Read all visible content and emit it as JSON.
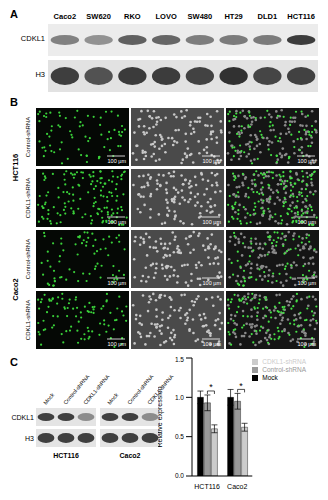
{
  "panel_labels": [
    "A",
    "B",
    "C"
  ],
  "panel_a": {
    "lanes": [
      "Caco2",
      "SW620",
      "RKO",
      "LOVO",
      "SW480",
      "HT29",
      "DLD1",
      "HCT116"
    ],
    "rows": [
      "CDKL1",
      "H3"
    ]
  },
  "panel_b": {
    "cell_lines": [
      "HCT116",
      "Caco2"
    ],
    "conditions": [
      "Control-shRNA",
      "CDKL1-shRNA"
    ],
    "scale_bar": "100 µm"
  },
  "panel_c": {
    "blots": [
      {
        "cell_line": "HCT116",
        "lanes": [
          "Mock",
          "Control-shRNA",
          "CDKL1-shRNA"
        ],
        "rows": [
          "CDKL1",
          "H3"
        ]
      },
      {
        "cell_line": "Caco2",
        "lanes": [
          "Mock",
          "Control-shRNA",
          "CDKL1-shRNA"
        ],
        "rows": [
          "CDKL1",
          "H3"
        ]
      }
    ]
  },
  "chart_data": {
    "type": "bar",
    "y_label": "Relative expression",
    "categories": [
      "HCT116",
      "Caco2"
    ],
    "series": [
      {
        "name": "Mock",
        "color": "#000000",
        "values": [
          1.0,
          1.0
        ],
        "errors": [
          0.08,
          0.1
        ]
      },
      {
        "name": "Control-shRNA",
        "color": "#999999",
        "values": [
          0.93,
          0.95
        ],
        "errors": [
          0.1,
          0.1
        ]
      },
      {
        "name": "CDKL1-shRNA",
        "color": "#cccccc",
        "values": [
          0.6,
          0.62
        ],
        "errors": [
          0.05,
          0.05
        ]
      }
    ],
    "ylim": [
      0,
      1.5
    ],
    "yticks": [
      {
        "value": 0,
        "label": "0.0"
      },
      0.5,
      {
        "value": 1,
        "label": "1.0"
      },
      1.5
    ],
    "legend": "top-right",
    "annotations": [
      "*",
      "*"
    ]
  }
}
